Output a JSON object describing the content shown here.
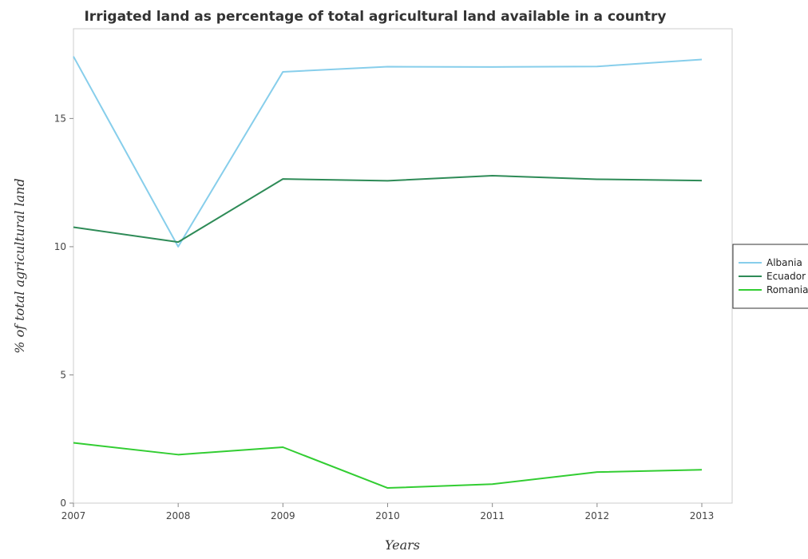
{
  "chart_data": {
    "type": "line",
    "title": "Irrigated land as percentage of total agricultural land available in a country",
    "xlabel": "Years",
    "ylabel": "% of total agricultural land",
    "categories": [
      "2007",
      "2008",
      "2009",
      "2010",
      "2011",
      "2012",
      "2013"
    ],
    "yticks": [
      0,
      5,
      10,
      15
    ],
    "ylim": [
      0,
      18.5
    ],
    "grid": false,
    "legend_position": "right",
    "series": [
      {
        "name": "Albania",
        "color": "#87ceeb",
        "values": [
          17.42,
          10.0,
          16.82,
          17.02,
          17.01,
          17.03,
          17.3
        ]
      },
      {
        "name": "Ecuador",
        "color": "#2e8b57",
        "values": [
          10.76,
          10.18,
          12.64,
          12.57,
          12.77,
          12.63,
          12.58
        ]
      },
      {
        "name": "Romania",
        "color": "#32cd32",
        "values": [
          2.35,
          1.89,
          2.18,
          0.59,
          0.74,
          1.21,
          1.3
        ]
      }
    ]
  }
}
